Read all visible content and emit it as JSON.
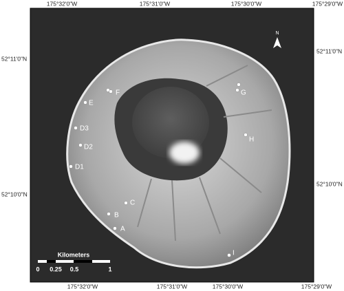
{
  "map": {
    "longitude_labels_top": [
      "175°32'0\"W",
      "175°31'0\"W",
      "175°30'0\"W",
      "175°29'0\"W"
    ],
    "longitude_labels_bottom": [
      "175°32'0\"W",
      "175°31'0\"W",
      "175°30'0\"W",
      "175°29'0\"W"
    ],
    "latitude_labels_left": [
      "52°11'0\"N",
      "52°10'0\"N"
    ],
    "latitude_labels_right": [
      "52°11'0\"N",
      "52°10'0\"N"
    ],
    "north_arrow": "N",
    "sites": [
      "A",
      "B",
      "C",
      "D1",
      "D2",
      "D3",
      "E",
      "F",
      "G",
      "H",
      "I"
    ],
    "scale_bar": {
      "title": "Kilometers",
      "labels": [
        "0",
        "0.25",
        "0.5",
        "1"
      ]
    }
  }
}
